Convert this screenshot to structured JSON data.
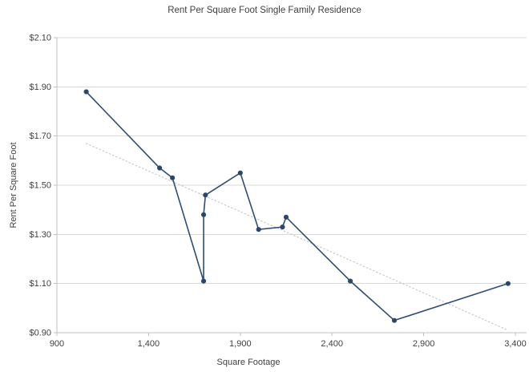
{
  "chart_data": {
    "type": "scatter",
    "title": "Rent Per Square Foot Single Family Residence",
    "xlabel": "Square Footage",
    "ylabel": "Rent Per Square Foot",
    "legend_position": "none",
    "grid": "horizontal",
    "x_axis": {
      "min": 900,
      "max": 3400,
      "tick_interval": 500,
      "ticks": [
        900,
        1400,
        1900,
        2400,
        2900,
        3400
      ],
      "tick_labels": [
        "900",
        "1,400",
        "1,900",
        "2,400",
        "2,900",
        "3,400"
      ]
    },
    "y_axis": {
      "min": 0.9,
      "max": 2.1,
      "tick_interval": 0.2,
      "ticks": [
        0.9,
        1.1,
        1.3,
        1.5,
        1.7,
        1.9,
        2.1
      ],
      "tick_labels": [
        "$0.90",
        "$1.10",
        "$1.30",
        "$1.50",
        "$1.70",
        "$1.90",
        "$2.10"
      ]
    },
    "series": [
      {
        "name": "Rent per square foot",
        "style": "line-with-markers",
        "points": [
          [
            1060,
            1.88
          ],
          [
            1460,
            1.57
          ],
          [
            1530,
            1.53
          ],
          [
            1700,
            1.11
          ],
          [
            1700,
            1.38
          ],
          [
            1710,
            1.46
          ],
          [
            1900,
            1.55
          ],
          [
            2000,
            1.32
          ],
          [
            2130,
            1.33
          ],
          [
            2150,
            1.37
          ],
          [
            2500,
            1.11
          ],
          [
            2740,
            0.95
          ],
          [
            3360,
            1.1
          ]
        ]
      }
    ],
    "trendline": {
      "type": "linear",
      "style": "dotted",
      "x1": 1060,
      "y1": 1.67,
      "x2": 3360,
      "y2": 0.91
    },
    "colors": {
      "series_line": "#2e4d76",
      "marker": "#2b4668",
      "trendline": "#c9c9c9",
      "gridline": "#d9d9d9",
      "axis_line": "#c0c0c0",
      "text": "#404040"
    }
  }
}
